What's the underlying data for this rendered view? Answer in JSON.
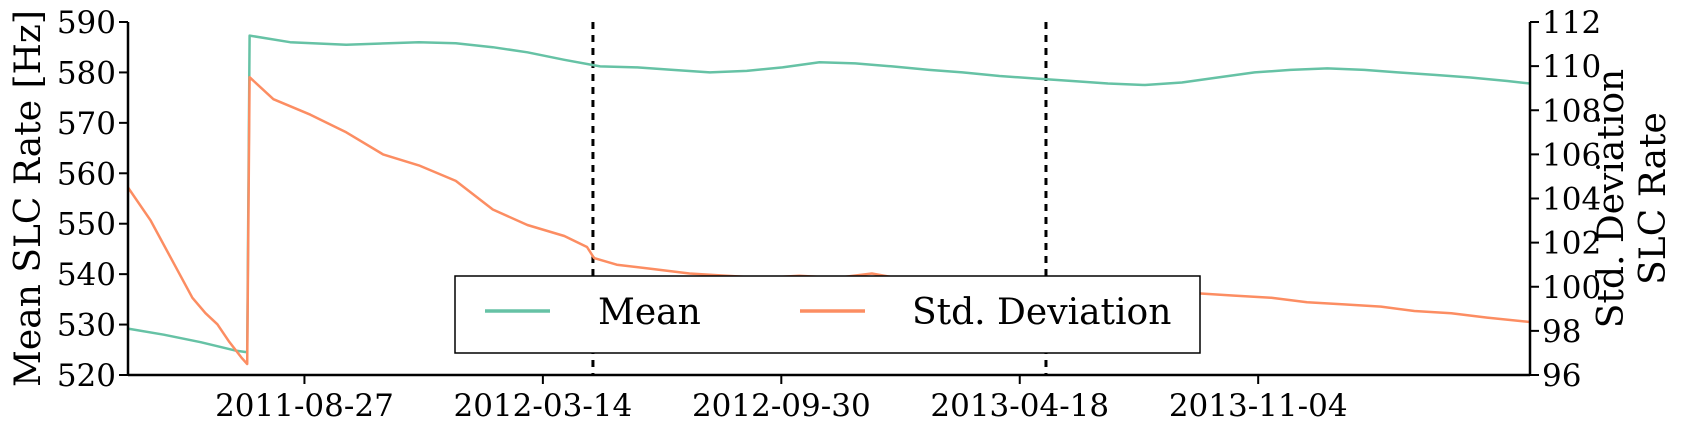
{
  "chart_data": {
    "type": "line",
    "x_axis": {
      "type": "date",
      "range": [
        "2011-04-01",
        "2014-06-20"
      ],
      "tick_labels": [
        "2011-08-27",
        "2012-03-14",
        "2012-09-30",
        "2013-04-18",
        "2013-11-04"
      ],
      "tick_values": [
        "2011-08-27",
        "2012-03-14",
        "2012-09-30",
        "2013-04-18",
        "2013-11-04"
      ]
    },
    "y_left": {
      "label": "Mean SLC Rate [Hz]",
      "ylim": [
        520,
        590
      ],
      "ticks": [
        520,
        530,
        540,
        550,
        560,
        570,
        580,
        590
      ],
      "tick_labels": [
        "520",
        "530",
        "540",
        "550",
        "560",
        "570",
        "580",
        "590"
      ]
    },
    "y_right": {
      "label_line1": "Std. Deviation",
      "label_line2": "SLC Rate",
      "ylim": [
        96,
        112
      ],
      "ticks": [
        96,
        98,
        100,
        102,
        104,
        106,
        108,
        110,
        112
      ],
      "tick_labels": [
        "96",
        "98",
        "100",
        "102",
        "104",
        "106",
        "108",
        "110",
        "112"
      ]
    },
    "vlines": [
      "2012-04-25",
      "2013-05-10"
    ],
    "legend": {
      "placement": "lower-center",
      "entries": [
        "Mean",
        "Std. Deviation"
      ]
    },
    "series": [
      {
        "name": "Mean",
        "axis": "left",
        "color": "#66c2a5",
        "x": [
          "2011-04-01",
          "2011-05-01",
          "2011-06-01",
          "2011-07-01",
          "2011-07-10",
          "2011-07-12",
          "2011-08-15",
          "2011-10-01",
          "2011-12-01",
          "2012-01-01",
          "2012-02-01",
          "2012-03-01",
          "2012-04-01",
          "2012-05-01",
          "2012-06-01",
          "2012-07-01",
          "2012-08-01",
          "2012-09-01",
          "2012-10-01",
          "2012-11-01",
          "2012-12-01",
          "2013-01-01",
          "2013-02-01",
          "2013-03-01",
          "2013-04-01",
          "2013-05-01",
          "2013-06-01",
          "2013-07-01",
          "2013-08-01",
          "2013-09-01",
          "2013-10-01",
          "2013-11-01",
          "2013-12-01",
          "2014-01-01",
          "2014-02-01",
          "2014-03-01",
          "2014-04-01",
          "2014-05-01",
          "2014-06-01",
          "2014-06-20"
        ],
        "y": [
          529.2,
          528.0,
          526.5,
          524.8,
          524.5,
          587.3,
          586.0,
          585.5,
          586.0,
          585.8,
          585.0,
          584.0,
          582.5,
          581.2,
          581.0,
          580.5,
          580.0,
          580.3,
          581.0,
          582.0,
          581.8,
          581.2,
          580.5,
          580.0,
          579.3,
          578.8,
          578.3,
          577.8,
          577.5,
          578.0,
          579.0,
          580.0,
          580.5,
          580.8,
          580.5,
          580.0,
          579.5,
          579.0,
          578.3,
          577.8
        ]
      },
      {
        "name": "Std. Deviation",
        "axis": "right",
        "color": "#fc8d62",
        "x": [
          "2011-04-01",
          "2011-04-20",
          "2011-05-10",
          "2011-05-25",
          "2011-06-05",
          "2011-06-15",
          "2011-06-25",
          "2011-07-05",
          "2011-07-10",
          "2011-07-12",
          "2011-08-01",
          "2011-09-01",
          "2011-10-01",
          "2011-11-01",
          "2011-12-01",
          "2012-01-01",
          "2012-02-01",
          "2012-03-01",
          "2012-04-01",
          "2012-04-20",
          "2012-04-26",
          "2012-05-15",
          "2012-06-15",
          "2012-07-15",
          "2012-08-15",
          "2012-09-15",
          "2012-10-15",
          "2012-11-15",
          "2012-12-15",
          "2013-01-15",
          "2013-02-15",
          "2013-03-15",
          "2013-04-15",
          "2013-05-15",
          "2013-06-15",
          "2013-07-15",
          "2013-08-15",
          "2013-09-15",
          "2013-10-15",
          "2013-11-15",
          "2013-12-15",
          "2014-01-15",
          "2014-02-15",
          "2014-03-15",
          "2014-04-15",
          "2014-05-15",
          "2014-06-20"
        ],
        "y": [
          104.5,
          103.0,
          101.0,
          99.5,
          98.8,
          98.3,
          97.5,
          96.8,
          96.5,
          109.5,
          108.5,
          107.8,
          107.0,
          106.0,
          105.5,
          104.8,
          103.5,
          102.8,
          102.3,
          101.8,
          101.3,
          101.0,
          100.8,
          100.6,
          100.5,
          100.4,
          100.5,
          100.4,
          100.6,
          100.3,
          100.3,
          100.2,
          100.3,
          100.1,
          99.9,
          99.8,
          99.8,
          99.7,
          99.6,
          99.5,
          99.3,
          99.2,
          99.1,
          98.9,
          98.8,
          98.6,
          98.4
        ]
      }
    ]
  }
}
